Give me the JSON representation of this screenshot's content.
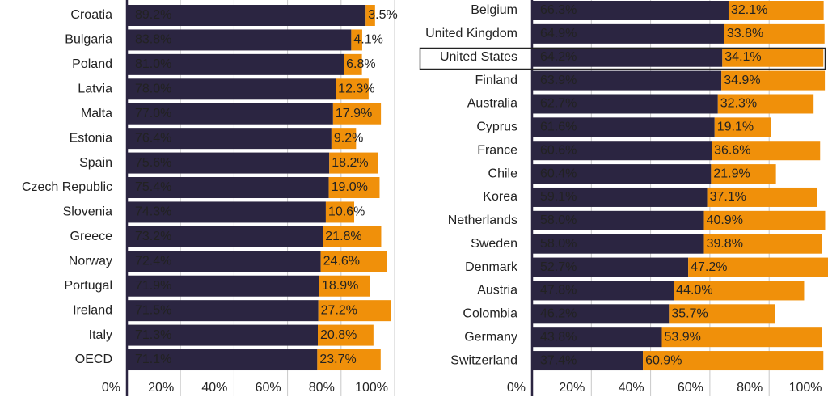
{
  "chart_data": [
    {
      "type": "bar",
      "orientation": "horizontal",
      "stacked": true,
      "grid": true,
      "categories": [
        "Croatia",
        "Bulgaria",
        "Poland",
        "Latvia",
        "Malta",
        "Estonia",
        "Spain",
        "Czech Republic",
        "Slovenia",
        "Greece",
        "Norway",
        "Portugal",
        "Ireland",
        "Italy",
        "OECD"
      ],
      "series": [
        {
          "color": "#2b2541",
          "values": [
            89.2,
            83.8,
            81.0,
            78.0,
            77.0,
            76.4,
            75.6,
            75.4,
            74.3,
            73.2,
            72.4,
            71.9,
            71.5,
            71.3,
            71.1
          ],
          "value_labels": [
            "89.2%",
            "83.8%",
            "81.0%",
            "78.0%",
            "77.0%",
            "76.4%",
            "75.6%",
            "75.4%",
            "74.3%",
            "73.2%",
            "72.4%",
            "71.9%",
            "71.5%",
            "71.3%",
            "71.1%"
          ]
        },
        {
          "color": "#f0900a",
          "values": [
            3.5,
            4.1,
            6.8,
            12.3,
            17.9,
            9.2,
            18.2,
            19.0,
            10.6,
            21.8,
            24.6,
            18.9,
            27.2,
            20.8,
            23.7
          ],
          "value_labels": [
            "3.5%",
            "4.1%",
            "6.8%",
            "12.3%",
            "17.9%",
            "9.2%",
            "18.2%",
            "19.0%",
            "10.6%",
            "21.8%",
            "24.6%",
            "18.9%",
            "27.2%",
            "20.8%",
            "23.7%"
          ]
        }
      ],
      "xlim": [
        0,
        100
      ],
      "xticks": [
        {
          "value": 0,
          "label": "0%"
        },
        {
          "value": 20,
          "label": "20%"
        },
        {
          "value": 40,
          "label": "40%"
        },
        {
          "value": 60,
          "label": "60%"
        },
        {
          "value": 80,
          "label": "80%"
        },
        {
          "value": 100,
          "label": "100%"
        }
      ]
    },
    {
      "type": "bar",
      "orientation": "horizontal",
      "stacked": true,
      "grid": true,
      "categories": [
        "Belgium",
        "United Kingdom",
        "United States",
        "Finland",
        "Australia",
        "Cyprus",
        "France",
        "Chile",
        "Korea",
        "Netherlands",
        "Sweden",
        "Denmark",
        "Austria",
        "Colombia",
        "Germany",
        "Switzerland"
      ],
      "series": [
        {
          "color": "#2b2541",
          "values": [
            66.3,
            64.9,
            64.2,
            63.9,
            62.7,
            61.6,
            60.6,
            60.4,
            59.1,
            58.0,
            58.0,
            52.7,
            47.8,
            46.2,
            43.8,
            37.4
          ],
          "value_labels": [
            "66.3%",
            "64.9%",
            "64.2%",
            "63.9%",
            "62.7%",
            "61.6%",
            "60.6%",
            "60.4%",
            "59.1%",
            "58.0%",
            "58.0%",
            "52.7%",
            "47.8%",
            "46.2%",
            "43.8%",
            "37.4%"
          ]
        },
        {
          "color": "#f0900a",
          "values": [
            32.1,
            33.8,
            34.1,
            34.9,
            32.3,
            19.1,
            36.6,
            21.9,
            37.1,
            40.9,
            39.8,
            47.2,
            44.0,
            35.7,
            53.9,
            60.9
          ],
          "value_labels": [
            "32.1%",
            "33.8%",
            "34.1%",
            "34.9%",
            "32.3%",
            "19.1%",
            "36.6%",
            "21.9%",
            "37.1%",
            "40.9%",
            "39.8%",
            "47.2%",
            "44.0%",
            "35.7%",
            "53.9%",
            "60.9%"
          ]
        }
      ],
      "xlim": [
        0,
        100
      ],
      "xticks": [
        {
          "value": 0,
          "label": "0%"
        },
        {
          "value": 20,
          "label": "20%"
        },
        {
          "value": 40,
          "label": "40%"
        },
        {
          "value": 60,
          "label": "60%"
        },
        {
          "value": 80,
          "label": "80%"
        },
        {
          "value": 100,
          "label": "100%"
        }
      ]
    }
  ]
}
